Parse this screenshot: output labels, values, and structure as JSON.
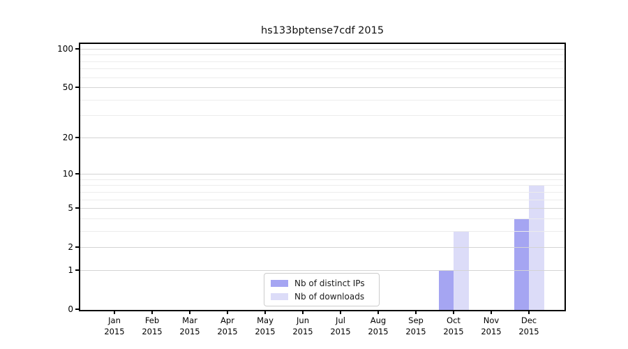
{
  "chart_data": {
    "type": "bar",
    "title": "hs133bptense7cdf 2015",
    "yscale": "log1p",
    "grid": "on",
    "months": [
      "Jan",
      "Feb",
      "Mar",
      "Apr",
      "May",
      "Jun",
      "Jul",
      "Aug",
      "Sep",
      "Oct",
      "Nov",
      "Dec"
    ],
    "year": "2015",
    "series": [
      {
        "name": "Nb of distinct IPs",
        "color": "#a5a5f2",
        "values": [
          0,
          0,
          0,
          0,
          0,
          0,
          0,
          0,
          0,
          1,
          0,
          4
        ]
      },
      {
        "name": "Nb of downloads",
        "color": "#dcdcf8",
        "values": [
          0,
          0,
          0,
          0,
          0,
          0,
          0,
          0,
          0,
          3,
          0,
          8
        ]
      }
    ],
    "y_major_ticks": [
      0,
      1,
      2,
      5,
      10,
      20,
      50,
      100
    ],
    "y_minor_ticks": [
      3,
      4,
      6,
      7,
      8,
      9,
      30,
      40,
      60,
      70,
      80,
      90
    ],
    "ylim": [
      0,
      110
    ],
    "legend_position": "lower center"
  },
  "legend": {
    "items": [
      {
        "label": "Nb of distinct IPs"
      },
      {
        "label": "Nb of downloads"
      }
    ]
  },
  "colors": {
    "bar_distinct_ips": "#a5a5f2",
    "bar_downloads": "#dcdcf8",
    "grid_major": "#d4d4d4",
    "grid_minor": "#ececec",
    "spine": "#000000",
    "legend_border": "#cccccc"
  }
}
